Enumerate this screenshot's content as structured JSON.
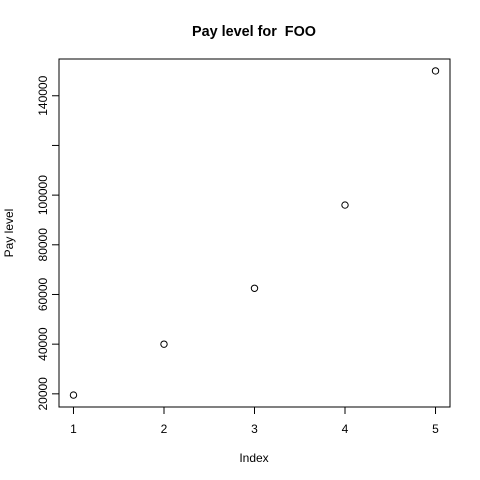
{
  "chart_data": {
    "type": "scatter",
    "title": "Pay level for  FOO",
    "xlabel": "Index",
    "ylabel": "Pay level",
    "x": [
      1,
      2,
      3,
      4,
      5
    ],
    "y": [
      19500,
      40000,
      62500,
      96000,
      150000
    ],
    "xlim": [
      0.84,
      5.16
    ],
    "ylim": [
      14700,
      154800
    ],
    "xticks": [
      1,
      2,
      3,
      4,
      5
    ],
    "yticks": [
      20000,
      40000,
      60000,
      80000,
      100000,
      120000,
      140000
    ],
    "ytick_labels_shown": [
      20000,
      40000,
      60000,
      80000,
      100000,
      140000
    ],
    "grid": false,
    "marker": "open-circle",
    "colors": {
      "points": "#000000",
      "axes": "#000000",
      "background": "#ffffff"
    }
  }
}
